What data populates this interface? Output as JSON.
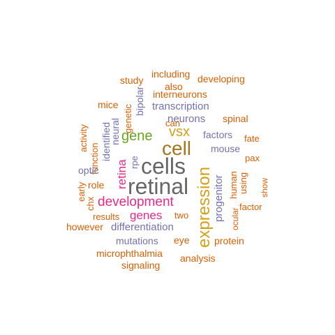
{
  "palette": {
    "orange": "#d95f02",
    "purple": "#7570b3",
    "pink": "#e7298a",
    "green": "#66a61e",
    "gold": "#d4a017",
    "brown": "#a6761d",
    "gray": "#666666"
  },
  "words": [
    {
      "text": "retinal",
      "color": "gray"
    },
    {
      "text": "cells",
      "color": "gray"
    },
    {
      "text": "cell",
      "color": "brown"
    },
    {
      "text": "expression",
      "color": "gold"
    },
    {
      "text": "development",
      "color": "pink"
    },
    {
      "text": "gene",
      "color": "green"
    },
    {
      "text": "vsx",
      "color": "gold"
    },
    {
      "text": "genes",
      "color": "pink"
    },
    {
      "text": "retina",
      "color": "pink"
    },
    {
      "text": "neurons",
      "color": "purple"
    },
    {
      "text": "differentiation",
      "color": "purple"
    },
    {
      "text": "progenitor",
      "color": "purple"
    },
    {
      "text": "transcription",
      "color": "purple"
    },
    {
      "text": "mutations",
      "color": "purple"
    },
    {
      "text": "factors",
      "color": "purple"
    },
    {
      "text": "mouse",
      "color": "purple"
    },
    {
      "text": "interneurons",
      "color": "orange"
    },
    {
      "text": "developing",
      "color": "orange"
    },
    {
      "text": "including",
      "color": "orange"
    },
    {
      "text": "study",
      "color": "orange"
    },
    {
      "text": "also",
      "color": "orange"
    },
    {
      "text": "bipolar",
      "color": "purple"
    },
    {
      "text": "genetic",
      "color": "orange"
    },
    {
      "text": "can",
      "color": "orange"
    },
    {
      "text": "mice",
      "color": "orange"
    },
    {
      "text": "neural",
      "color": "purple"
    },
    {
      "text": "identified",
      "color": "purple"
    },
    {
      "text": "function",
      "color": "orange"
    },
    {
      "text": "activity",
      "color": "orange"
    },
    {
      "text": "rpe",
      "color": "purple"
    },
    {
      "text": "optic",
      "color": "purple"
    },
    {
      "text": "role",
      "color": "orange"
    },
    {
      "text": "early",
      "color": "orange"
    },
    {
      "text": "chx",
      "color": "orange"
    },
    {
      "text": "results",
      "color": "orange"
    },
    {
      "text": "however",
      "color": "orange"
    },
    {
      "text": "two",
      "color": "orange"
    },
    {
      "text": "eye",
      "color": "orange"
    },
    {
      "text": "protein",
      "color": "orange"
    },
    {
      "text": "spinal",
      "color": "orange"
    },
    {
      "text": "fate",
      "color": "orange"
    },
    {
      "text": "pax",
      "color": "orange"
    },
    {
      "text": "human",
      "color": "orange"
    },
    {
      "text": "using",
      "color": "orange"
    },
    {
      "text": "ocular",
      "color": "orange"
    },
    {
      "text": "factor",
      "color": "orange"
    },
    {
      "text": "show",
      "color": "orange"
    },
    {
      "text": "microphthalmia",
      "color": "orange"
    },
    {
      "text": "signaling",
      "color": "orange"
    },
    {
      "text": "analysis",
      "color": "orange"
    }
  ]
}
